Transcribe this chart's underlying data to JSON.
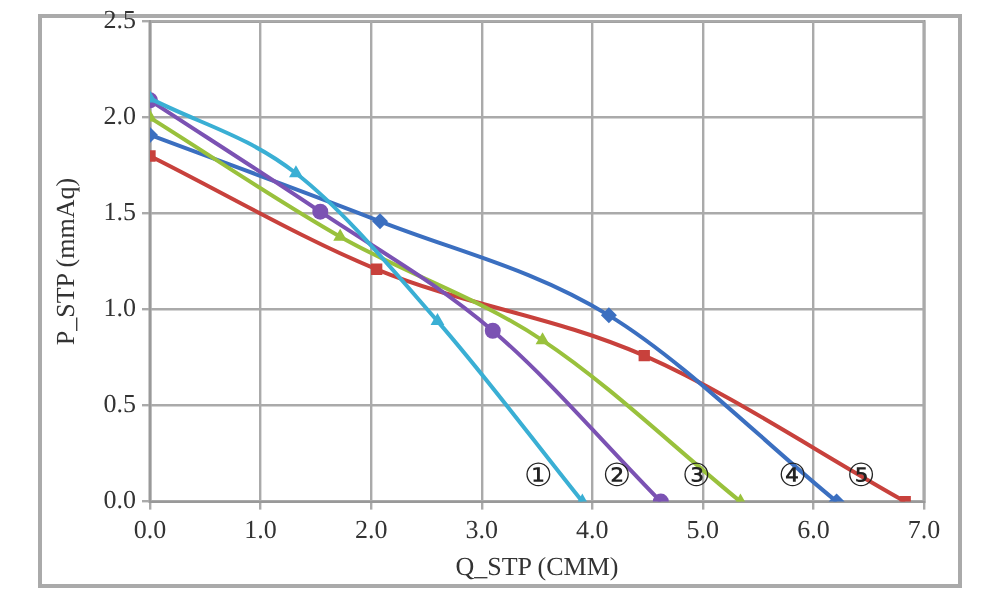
{
  "chart_data": {
    "type": "line",
    "xlabel": "Q_STP (CMM)",
    "ylabel": "P_STP (mmAq)",
    "xlim": [
      0,
      7
    ],
    "xticks": [
      {
        "value": 0,
        "label": "0.0"
      },
      {
        "value": 1,
        "label": "1.0"
      },
      {
        "value": 2,
        "label": "2.0"
      },
      {
        "value": 3,
        "label": "3.0"
      },
      {
        "value": 4,
        "label": "4.0"
      },
      {
        "value": 5,
        "label": "5.0"
      },
      {
        "value": 6,
        "label": "6.0"
      },
      {
        "value": 7,
        "label": "7.0"
      }
    ],
    "ylim": [
      0,
      2.5
    ],
    "yticks": [
      {
        "value": 0,
        "label": "0.0"
      },
      {
        "value": 0.5,
        "label": "0.5"
      },
      {
        "value": 1,
        "label": "1.0"
      },
      {
        "value": 1.5,
        "label": "1.5"
      },
      {
        "value": 2,
        "label": "2.0"
      },
      {
        "value": 2.5,
        "label": "2.5"
      }
    ],
    "grid": true,
    "legend": false,
    "series": [
      {
        "name": "①",
        "color": "#3aafd4",
        "marker": "triangle",
        "x": [
          0,
          1.32,
          2.6,
          3.91
        ],
        "values": [
          2.1,
          1.71,
          0.94,
          0
        ]
      },
      {
        "name": "②",
        "color": "#7b52b3",
        "marker": "circle",
        "x": [
          0,
          1.54,
          3.1,
          4.62
        ],
        "values": [
          2.09,
          1.51,
          0.89,
          0
        ]
      },
      {
        "name": "③",
        "color": "#99c13c",
        "marker": "triangle",
        "x": [
          0,
          1.72,
          3.55,
          5.34
        ],
        "values": [
          2.0,
          1.38,
          0.84,
          0
        ]
      },
      {
        "name": "④",
        "color": "#3b6fc0",
        "marker": "diamond",
        "x": [
          0,
          2.08,
          4.15,
          6.21
        ],
        "values": [
          1.91,
          1.46,
          0.97,
          0
        ]
      },
      {
        "name": "⑤",
        "color": "#c8413c",
        "marker": "square",
        "x": [
          0,
          2.05,
          4.47,
          6.83
        ],
        "values": [
          1.8,
          1.21,
          0.76,
          0
        ]
      }
    ]
  }
}
